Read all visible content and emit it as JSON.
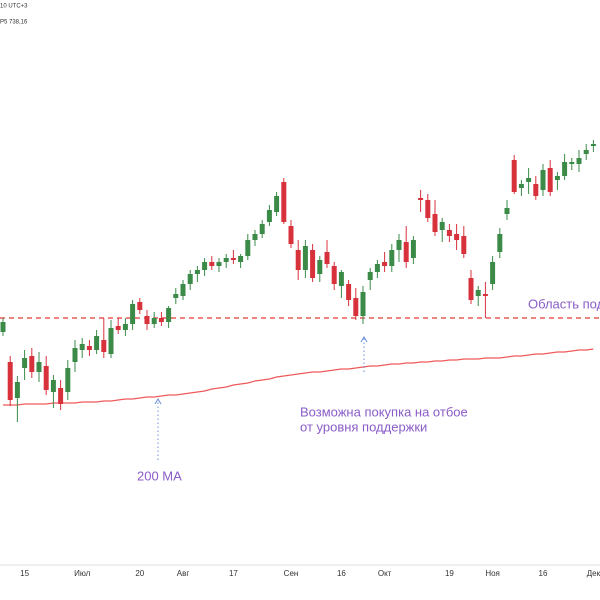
{
  "chart_data": {
    "type": "candlestick",
    "header": [
      "10 UTC+3",
      "P5 738,16"
    ],
    "categories": [
      null,
      null,
      null,
      "15",
      null,
      null,
      null,
      null,
      null,
      null,
      null,
      "Июл",
      null,
      null,
      null,
      null,
      null,
      null,
      null,
      "20",
      null,
      null,
      null,
      null,
      null,
      "Авг",
      null,
      null,
      null,
      null,
      null,
      null,
      "17",
      null,
      null,
      null,
      null,
      null,
      null,
      null,
      "Сен",
      null,
      null,
      null,
      null,
      null,
      null,
      "16",
      null,
      null,
      null,
      null,
      null,
      "Окт",
      null,
      null,
      null,
      null,
      null,
      null,
      null,
      null,
      "19",
      null,
      null,
      null,
      null,
      null,
      "Ноя",
      null,
      null,
      null,
      null,
      null,
      null,
      "16",
      null,
      null,
      null,
      null,
      null,
      null,
      "Дек"
    ],
    "open": [
      5668,
      5638,
      5602,
      5632,
      5644,
      5628,
      5634,
      5608,
      5612,
      5608,
      5638,
      5650,
      5654,
      5650,
      5660,
      5646,
      5674,
      5670,
      5676,
      5698,
      5684,
      5676,
      5682,
      5678,
      5702,
      5704,
      5716,
      5726,
      5730,
      5738,
      5734,
      5738,
      5742,
      5738,
      5744,
      5760,
      5766,
      5778,
      5788,
      5818,
      5774,
      5750,
      5730,
      5750,
      5726,
      5748,
      5734,
      5714,
      5716,
      5702,
      5684,
      5720,
      5728,
      5738,
      5734,
      5750,
      5758,
      5742,
      5802,
      5800,
      5786,
      5770,
      5770,
      5766,
      5764,
      5722,
      5704,
      5706,
      5716,
      5748,
      5786,
      5840,
      5812,
      5818,
      5816,
      5810,
      5832,
      5820,
      5824,
      5836,
      5836,
      5846,
      5854
    ],
    "high": [
      5682,
      5644,
      5624,
      5650,
      5652,
      5648,
      5644,
      5625,
      5620,
      5640,
      5660,
      5662,
      5660,
      5670,
      5682,
      5680,
      5682,
      5682,
      5700,
      5702,
      5690,
      5688,
      5688,
      5694,
      5712,
      5720,
      5730,
      5734,
      5742,
      5744,
      5742,
      5746,
      5750,
      5746,
      5766,
      5770,
      5780,
      5795,
      5808,
      5822,
      5780,
      5760,
      5760,
      5756,
      5744,
      5760,
      5738,
      5730,
      5720,
      5712,
      5714,
      5732,
      5740,
      5748,
      5756,
      5766,
      5774,
      5764,
      5810,
      5806,
      5800,
      5782,
      5776,
      5776,
      5774,
      5730,
      5714,
      5718,
      5744,
      5772,
      5800,
      5845,
      5820,
      5832,
      5824,
      5836,
      5840,
      5828,
      5846,
      5842,
      5850,
      5856,
      5860
    ],
    "low": [
      5664,
      5594,
      5578,
      5620,
      5622,
      5618,
      5605,
      5592,
      5590,
      5600,
      5628,
      5642,
      5644,
      5646,
      5642,
      5642,
      5666,
      5664,
      5670,
      5686,
      5670,
      5672,
      5674,
      5672,
      5696,
      5700,
      5710,
      5718,
      5724,
      5730,
      5728,
      5732,
      5736,
      5732,
      5740,
      5754,
      5762,
      5774,
      5784,
      5776,
      5752,
      5720,
      5722,
      5718,
      5718,
      5732,
      5710,
      5702,
      5694,
      5680,
      5676,
      5710,
      5722,
      5728,
      5728,
      5738,
      5732,
      5736,
      5788,
      5778,
      5764,
      5758,
      5758,
      5750,
      5742,
      5696,
      5694,
      5682,
      5710,
      5742,
      5780,
      5806,
      5804,
      5806,
      5800,
      5804,
      5804,
      5810,
      5820,
      5830,
      5828,
      5840,
      5848
    ],
    "close": [
      5678,
      5600,
      5618,
      5642,
      5628,
      5638,
      5610,
      5620,
      5596,
      5632,
      5652,
      5656,
      5650,
      5664,
      5648,
      5672,
      5670,
      5676,
      5696,
      5690,
      5676,
      5682,
      5678,
      5692,
      5706,
      5716,
      5726,
      5730,
      5738,
      5734,
      5738,
      5742,
      5740,
      5744,
      5760,
      5766,
      5776,
      5790,
      5804,
      5778,
      5756,
      5730,
      5754,
      5722,
      5740,
      5736,
      5716,
      5728,
      5700,
      5684,
      5708,
      5728,
      5736,
      5734,
      5750,
      5760,
      5738,
      5760,
      5800,
      5782,
      5768,
      5778,
      5764,
      5760,
      5746,
      5700,
      5710,
      5704,
      5738,
      5766,
      5792,
      5808,
      5816,
      5822,
      5804,
      5830,
      5808,
      5824,
      5838,
      5838,
      5842,
      5850,
      5856
    ],
    "ma": [
      5595,
      5595,
      5595,
      5596,
      5596,
      5596,
      5596,
      5597,
      5597,
      5597,
      5597,
      5598,
      5598,
      5598,
      5599,
      5599,
      5600,
      5601,
      5601,
      5602,
      5603,
      5603,
      5604,
      5605,
      5605,
      5606,
      5607,
      5608,
      5609,
      5611,
      5612,
      5613,
      5615,
      5616,
      5617,
      5619,
      5620,
      5621,
      5623,
      5624,
      5625,
      5626,
      5627,
      5628,
      5628,
      5629,
      5630,
      5631,
      5631,
      5632,
      5633,
      5634,
      5634,
      5635,
      5636,
      5636,
      5637,
      5637,
      5638,
      5638,
      5639,
      5639,
      5640,
      5640,
      5641,
      5641,
      5641,
      5642,
      5642,
      5642,
      5643,
      5644,
      5644,
      5645,
      5646,
      5646,
      5647,
      5648,
      5648,
      5649,
      5650,
      5650,
      5651
    ],
    "support": 5682,
    "ylim": [
      5430,
      6000
    ],
    "up_color": "#3b8a48",
    "down_color": "#d7323c",
    "ma_color": "#f05a5a",
    "support_color": "#e53935",
    "annotations": [
      {
        "text": "Область под"
      },
      {
        "lines": [
          "Возможна покупка на отбое",
          "от уровня поддержки"
        ]
      },
      {
        "text": "200 MA"
      }
    ]
  }
}
